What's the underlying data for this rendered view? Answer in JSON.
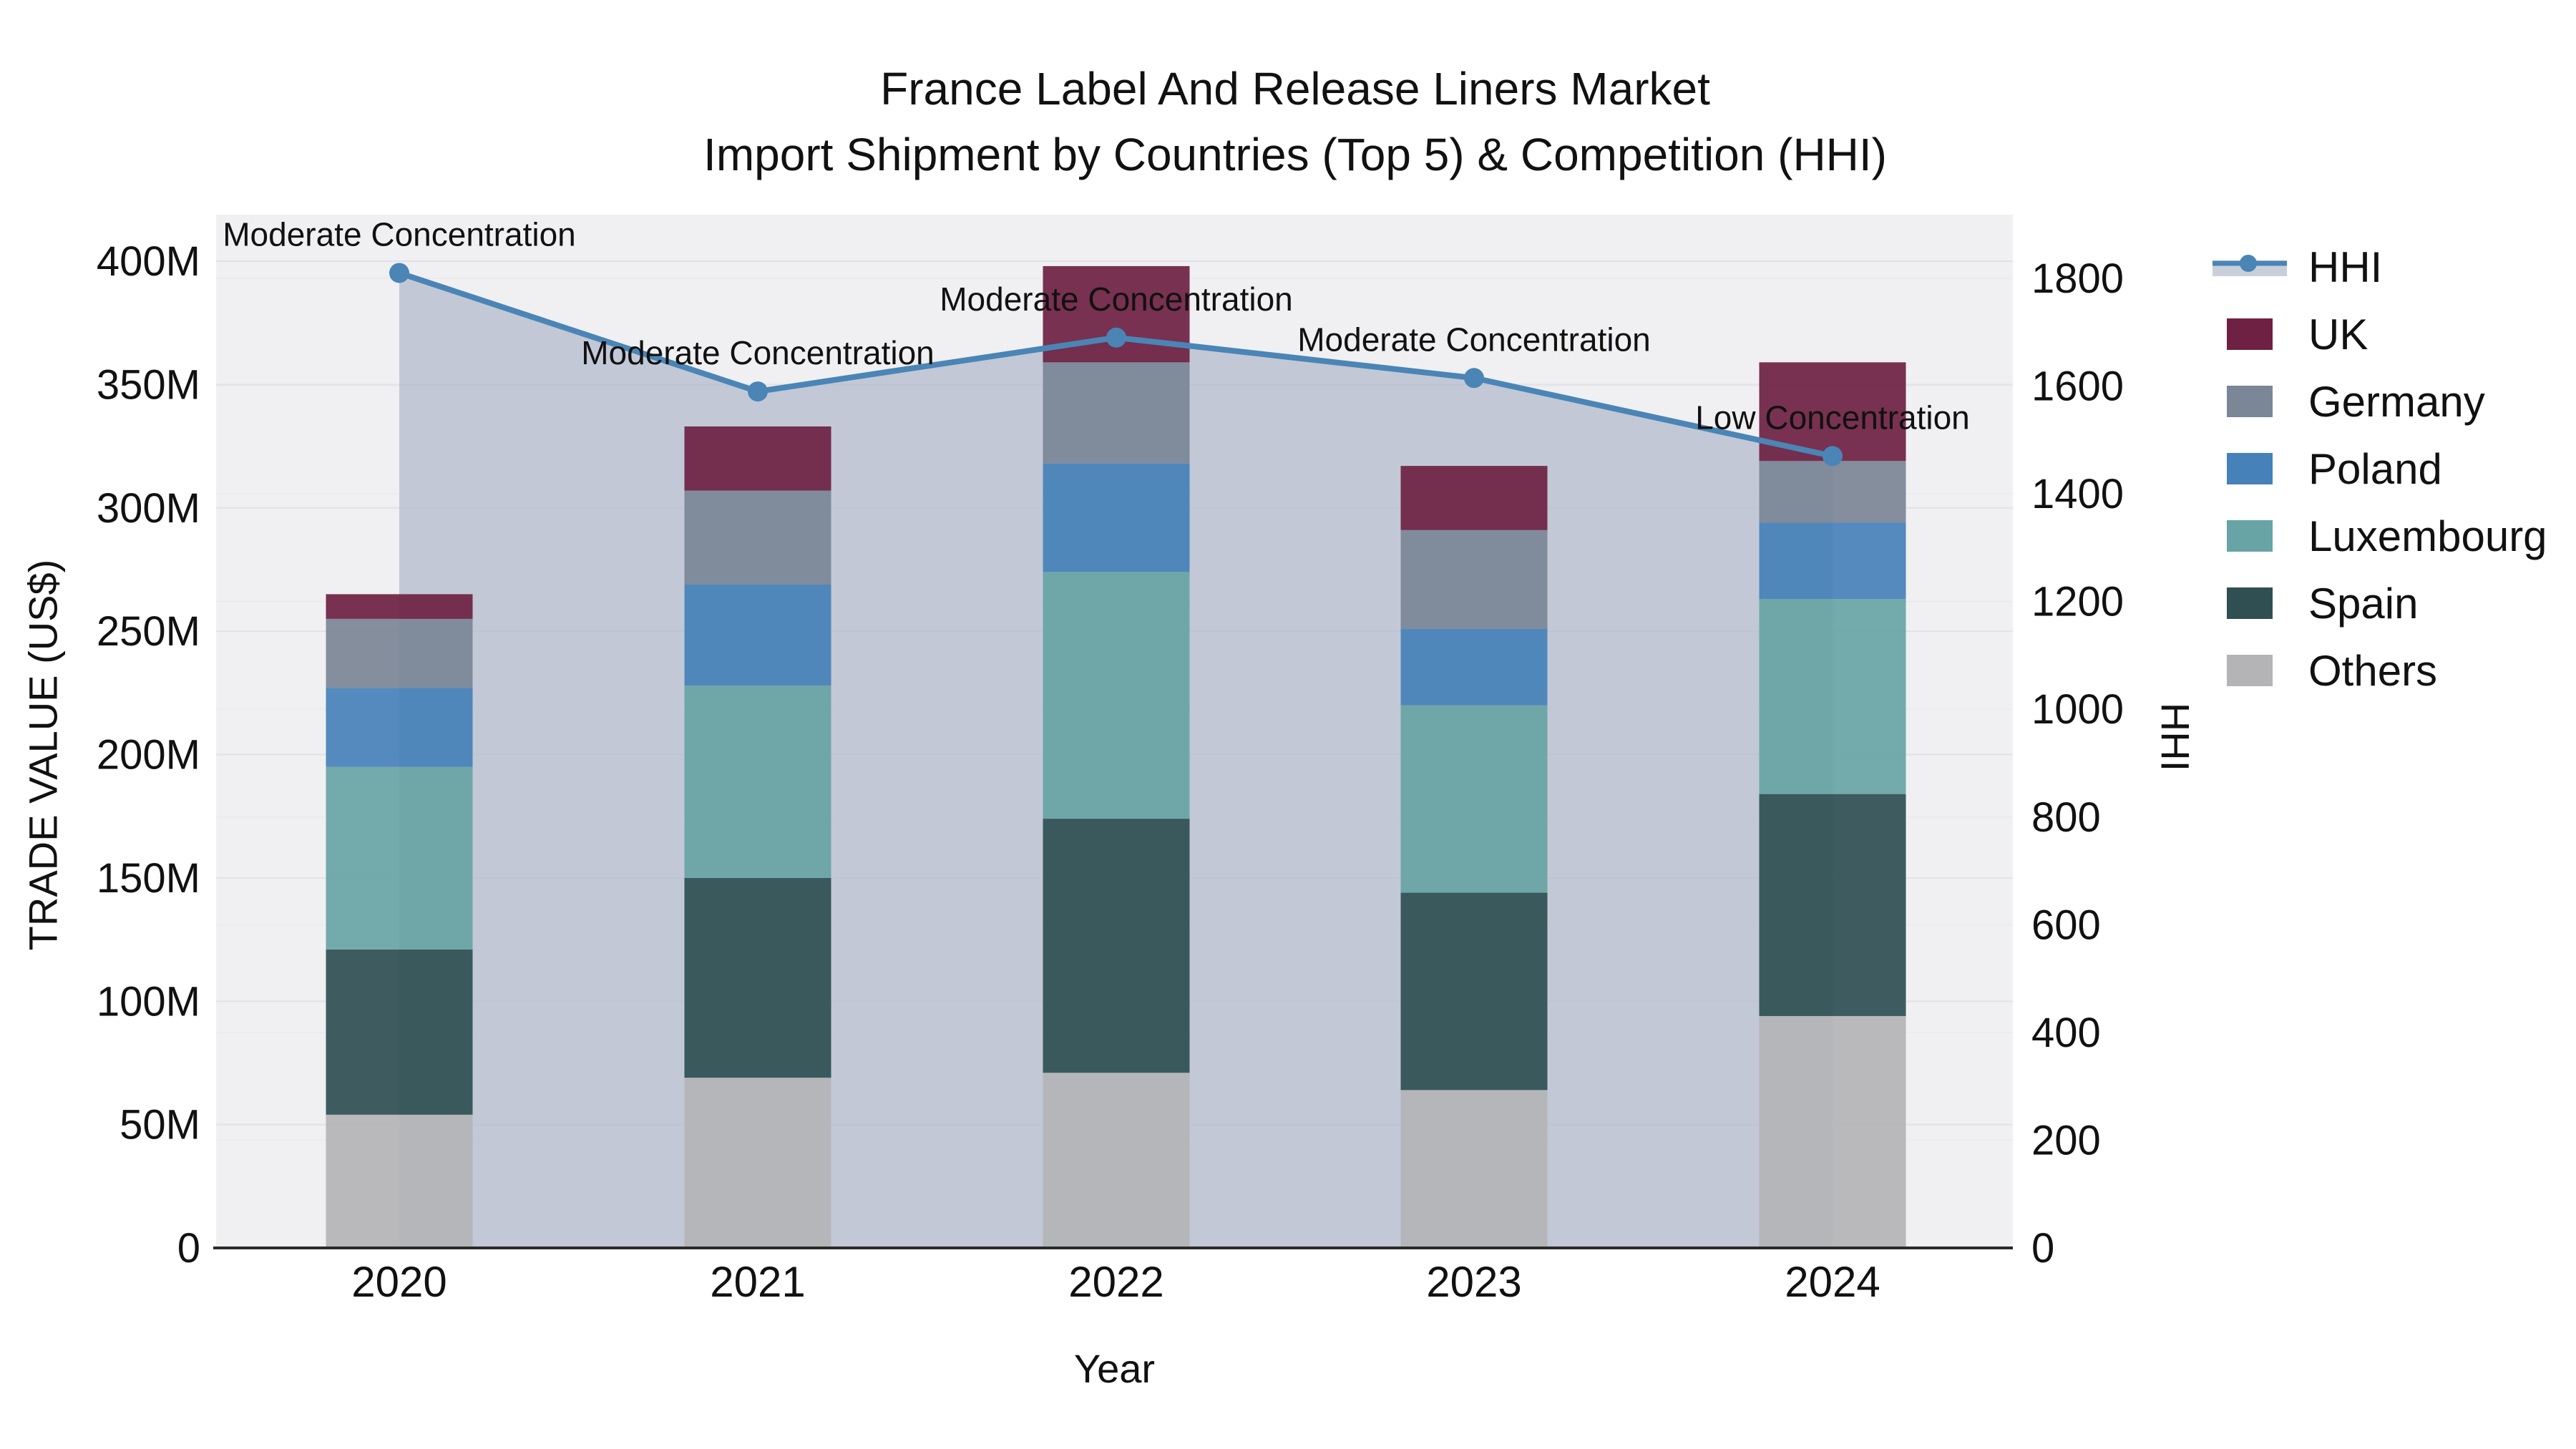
{
  "title": {
    "line1": "France Label And Release Liners Market",
    "line2": "Import Shipment by Countries (Top 5) & Competition (HHI)"
  },
  "chart_data": {
    "type": "bar",
    "subtype": "stacked-bar-with-line",
    "categories": [
      "2020",
      "2021",
      "2022",
      "2023",
      "2024"
    ],
    "values_unit": "Million US$",
    "series": [
      {
        "name": "Others",
        "values": [
          54,
          69,
          71,
          64,
          94
        ],
        "color": "#b4b4b6"
      },
      {
        "name": "Spain",
        "values": [
          67,
          81,
          103,
          80,
          90
        ],
        "color": "#2f4f52"
      },
      {
        "name": "Luxembourg",
        "values": [
          74,
          78,
          100,
          76,
          79
        ],
        "color": "#68a4a5"
      },
      {
        "name": "Poland",
        "values": [
          32,
          41,
          44,
          31,
          31
        ],
        "color": "#4681b9"
      },
      {
        "name": "Germany",
        "values": [
          28,
          38,
          41,
          40,
          25
        ],
        "color": "#7b8696"
      },
      {
        "name": "UK",
        "values": [
          10,
          26,
          39,
          26,
          40
        ],
        "color": "#6e2142"
      }
    ],
    "bar_totals": [
      265,
      333,
      398,
      317,
      359
    ],
    "line": {
      "name": "HHI",
      "values": [
        1810,
        1590,
        1690,
        1615,
        1470
      ],
      "color": "#4a85b6",
      "area_fill": "rgba(172,182,200,0.68)"
    },
    "annotations": [
      {
        "category": "2020",
        "text": "Moderate Concentration"
      },
      {
        "category": "2021",
        "text": "Moderate Concentration"
      },
      {
        "category": "2022",
        "text": "Moderate Concentration"
      },
      {
        "category": "2023",
        "text": "Moderate Concentration"
      },
      {
        "category": "2024",
        "text": "Low Concentration"
      }
    ],
    "left_axis": {
      "title": "TRADE VALUE (US$)",
      "ticks": [
        "0",
        "50M",
        "100M",
        "150M",
        "200M",
        "250M",
        "300M",
        "350M",
        "400M"
      ],
      "tick_values": [
        0,
        50,
        100,
        150,
        200,
        250,
        300,
        350,
        400
      ],
      "max": 400
    },
    "right_axis": {
      "title": "HHI",
      "ticks": [
        "0",
        "200",
        "400",
        "600",
        "800",
        "1000",
        "1200",
        "1400",
        "1600",
        "1800"
      ],
      "tick_values": [
        0,
        200,
        400,
        600,
        800,
        1000,
        1200,
        1400,
        1600,
        1800
      ],
      "max": 1800
    },
    "x_axis": {
      "title": "Year"
    },
    "legend_position": "right",
    "grid": true,
    "plot_bg": "#f0f0f2"
  },
  "legend": [
    {
      "label": "HHI",
      "type": "line",
      "color": "#4a85b6",
      "band": "#c9cfda"
    },
    {
      "label": "UK",
      "type": "box",
      "color": "#6e2142"
    },
    {
      "label": "Germany",
      "type": "box",
      "color": "#7b8696"
    },
    {
      "label": "Poland",
      "type": "box",
      "color": "#4681b9"
    },
    {
      "label": "Luxembourg",
      "type": "box",
      "color": "#68a4a5"
    },
    {
      "label": "Spain",
      "type": "box",
      "color": "#2f4f52"
    },
    {
      "label": "Others",
      "type": "box",
      "color": "#b4b4b6"
    }
  ],
  "colors": {
    "hhi_line": "#4a85b6",
    "area_fill": "#c9cfda",
    "plot_background": "#f0f0f2",
    "axis_line": "#2a2a2a",
    "text": "#111111"
  }
}
